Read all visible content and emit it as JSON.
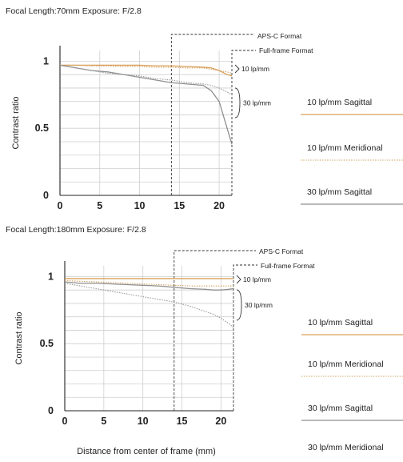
{
  "colors": {
    "sagittal_10": "#d9a05a",
    "meridional_10": "#d2a464",
    "sagittal_30": "#8f8f8f",
    "meridional_30": "#9a9a9a",
    "grid": "#cfcfcf",
    "axis": "#222222"
  },
  "legend_labels": [
    "10 lp/mm Sagittal",
    "10 lp/mm Meridional",
    "30 lp/mm Sagittal",
    "30 lp/mm Meridional"
  ],
  "bottom_axis_label": "Distance from center of frame (mm)",
  "chart_data": [
    {
      "type": "line",
      "title": "Focal Length:70mm    Exposure: F/2.8",
      "ylabel": "Contrast ratio",
      "xlabel": "",
      "xlim": [
        0,
        21.6
      ],
      "ylim": [
        0,
        1.08
      ],
      "x_ticks": [
        "0",
        "5",
        "10",
        "15",
        "20"
      ],
      "y_ticks": [
        "0",
        "0.5",
        "1"
      ],
      "grid": true,
      "markers": [
        {
          "label": "APS-C Format",
          "x": 14
        },
        {
          "label": "Full-frame Format",
          "x": 21.6
        }
      ],
      "group_labels": [
        "10 lp/mm",
        "30 lp/mm"
      ],
      "x": [
        0,
        2,
        4,
        6,
        8,
        10,
        12,
        14,
        16,
        18,
        19,
        20,
        21,
        21.6
      ],
      "series": [
        {
          "name": "10 lp/mm Sagittal",
          "style": "solid",
          "color_key": "sagittal_10",
          "values": [
            0.97,
            0.97,
            0.97,
            0.97,
            0.97,
            0.97,
            0.965,
            0.965,
            0.96,
            0.955,
            0.95,
            0.93,
            0.9,
            0.89
          ]
        },
        {
          "name": "10 lp/mm Meridional",
          "style": "dotted",
          "color_key": "meridional_10",
          "values": [
            0.97,
            0.97,
            0.965,
            0.965,
            0.96,
            0.96,
            0.955,
            0.955,
            0.95,
            0.95,
            0.94,
            0.93,
            0.92,
            0.91
          ]
        },
        {
          "name": "30 lp/mm Sagittal",
          "style": "solid",
          "color_key": "sagittal_30",
          "values": [
            0.97,
            0.95,
            0.93,
            0.92,
            0.9,
            0.88,
            0.86,
            0.84,
            0.83,
            0.82,
            0.78,
            0.7,
            0.5,
            0.38
          ]
        },
        {
          "name": "30 lp/mm Meridional",
          "style": "dotted",
          "color_key": "meridional_30",
          "values": [
            0.97,
            0.95,
            0.93,
            0.91,
            0.9,
            0.89,
            0.87,
            0.86,
            0.84,
            0.83,
            0.82,
            0.8,
            0.77,
            0.75
          ]
        }
      ]
    },
    {
      "type": "line",
      "title": "Focal Length:180mm   Exposure: F/2.8",
      "ylabel": "Contrast ratio",
      "xlabel": "Distance from center of frame (mm)",
      "xlim": [
        0,
        21.6
      ],
      "ylim": [
        0,
        1.08
      ],
      "x_ticks": [
        "0",
        "5",
        "10",
        "15",
        "20"
      ],
      "y_ticks": [
        "0",
        "0.5",
        "1"
      ],
      "grid": true,
      "markers": [
        {
          "label": "APS-C Format",
          "x": 14
        },
        {
          "label": "Full-frame Format",
          "x": 21.6
        }
      ],
      "group_labels": [
        "10 lp/mm",
        "30 lp/mm"
      ],
      "x": [
        0,
        2,
        4,
        6,
        8,
        10,
        12,
        14,
        16,
        18,
        19,
        20,
        21,
        21.6
      ],
      "series": [
        {
          "name": "10 lp/mm Sagittal",
          "style": "solid",
          "color_key": "sagittal_10",
          "values": [
            0.985,
            0.985,
            0.985,
            0.985,
            0.985,
            0.985,
            0.985,
            0.985,
            0.985,
            0.985,
            0.985,
            0.985,
            0.985,
            0.985
          ]
        },
        {
          "name": "10 lp/mm Meridional",
          "style": "dotted",
          "color_key": "meridional_10",
          "values": [
            0.97,
            0.965,
            0.96,
            0.955,
            0.95,
            0.945,
            0.94,
            0.935,
            0.93,
            0.93,
            0.93,
            0.93,
            0.93,
            0.93
          ]
        },
        {
          "name": "30 lp/mm Sagittal",
          "style": "solid",
          "color_key": "sagittal_30",
          "values": [
            0.96,
            0.95,
            0.95,
            0.945,
            0.94,
            0.935,
            0.93,
            0.92,
            0.91,
            0.905,
            0.9,
            0.9,
            0.905,
            0.91
          ]
        },
        {
          "name": "30 lp/mm Meridional",
          "style": "dotted",
          "color_key": "meridional_30",
          "values": [
            0.95,
            0.93,
            0.91,
            0.89,
            0.87,
            0.85,
            0.83,
            0.81,
            0.78,
            0.74,
            0.72,
            0.69,
            0.65,
            0.62
          ]
        }
      ]
    }
  ]
}
